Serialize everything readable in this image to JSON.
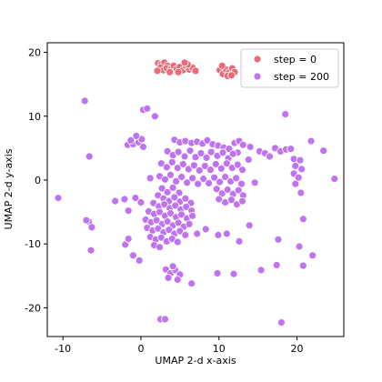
{
  "chart_data": {
    "type": "scatter",
    "title": "",
    "xlabel": "UMAP 2-d x-axis",
    "ylabel": "UMAP 2-d y-axis",
    "xlim": [
      -12,
      26
    ],
    "ylim": [
      -24.5,
      21.5
    ],
    "xticks": [
      -10,
      0,
      10,
      20
    ],
    "yticks": [
      -20,
      -10,
      0,
      10,
      20
    ],
    "grid": false,
    "legend_position": "top-right",
    "series": [
      {
        "name": "step = 0",
        "color": "#ea6a78",
        "points": [
          [
            2.2,
            18.3
          ],
          [
            2.6,
            18.1
          ],
          [
            3.0,
            18.4
          ],
          [
            3.4,
            17.9
          ],
          [
            2.5,
            17.6
          ],
          [
            2.9,
            17.2
          ],
          [
            3.3,
            17.5
          ],
          [
            3.8,
            17.3
          ],
          [
            4.2,
            17.9
          ],
          [
            4.6,
            17.4
          ],
          [
            5.0,
            17.7
          ],
          [
            5.4,
            17.2
          ],
          [
            5.8,
            17.8
          ],
          [
            6.2,
            17.3
          ],
          [
            6.6,
            17.6
          ],
          [
            7.0,
            17.1
          ],
          [
            2.1,
            17.1
          ],
          [
            3.7,
            16.9
          ],
          [
            4.8,
            16.9
          ],
          [
            6.0,
            18.1
          ],
          [
            5.6,
            18.4
          ],
          [
            10.1,
            17.2
          ],
          [
            10.5,
            16.6
          ],
          [
            10.9,
            17.3
          ],
          [
            11.3,
            16.9
          ],
          [
            11.7,
            17.5
          ],
          [
            10.4,
            17.9
          ],
          [
            11.1,
            16.3
          ],
          [
            12.0,
            16.9
          ],
          [
            11.6,
            16.4
          ]
        ]
      },
      {
        "name": "step = 200",
        "color": "#c073f0",
        "points": [
          [
            -7.2,
            12.4
          ],
          [
            -10.6,
            -2.8
          ],
          [
            -6.6,
            3.7
          ],
          [
            -6.7,
            -6.5
          ],
          [
            -6.3,
            -7.4
          ],
          [
            -6.4,
            -11.0
          ],
          [
            -7.0,
            -6.3
          ],
          [
            0.3,
            11.0
          ],
          [
            0.8,
            11.2
          ],
          [
            1.8,
            10.0
          ],
          [
            18.5,
            10.3
          ],
          [
            -1.7,
            5.5
          ],
          [
            -1.0,
            5.6
          ],
          [
            -0.3,
            5.9
          ],
          [
            0.1,
            6.4
          ],
          [
            -0.6,
            6.9
          ],
          [
            0.3,
            5.2
          ],
          [
            -1.3,
            6.2
          ],
          [
            1.2,
            0.3
          ],
          [
            -3.3,
            -3.3
          ],
          [
            -2.1,
            -3.0
          ],
          [
            -1.6,
            -4.8
          ],
          [
            -0.7,
            -2.8
          ],
          [
            0.0,
            -3.5
          ],
          [
            -2.0,
            -10.1
          ],
          [
            -1.6,
            -9.2
          ],
          [
            -1.0,
            -11.8
          ],
          [
            -0.2,
            -12.6
          ],
          [
            4.3,
            6.3
          ],
          [
            5.0,
            5.9
          ],
          [
            5.7,
            6.1
          ],
          [
            6.5,
            5.8
          ],
          [
            7.2,
            6.0
          ],
          [
            7.9,
            5.7
          ],
          [
            8.5,
            6.2
          ],
          [
            9.2,
            5.6
          ],
          [
            9.9,
            5.4
          ],
          [
            10.6,
            5.1
          ],
          [
            11.3,
            4.9
          ],
          [
            12.0,
            5.8
          ],
          [
            12.6,
            6.1
          ],
          [
            13.1,
            5.5
          ],
          [
            12.4,
            4.3
          ],
          [
            3.4,
            4.5
          ],
          [
            4.1,
            3.9
          ],
          [
            4.8,
            4.4
          ],
          [
            5.6,
            3.7
          ],
          [
            6.3,
            4.6
          ],
          [
            7.0,
            3.6
          ],
          [
            7.7,
            4.2
          ],
          [
            8.4,
            3.5
          ],
          [
            9.0,
            4.4
          ],
          [
            9.8,
            3.8
          ],
          [
            10.5,
            4.3
          ],
          [
            11.2,
            3.4
          ],
          [
            11.8,
            4.1
          ],
          [
            2.6,
            2.6
          ],
          [
            3.3,
            2.0
          ],
          [
            4.0,
            2.8
          ],
          [
            4.7,
            1.9
          ],
          [
            5.4,
            2.5
          ],
          [
            6.1,
            1.7
          ],
          [
            6.8,
            2.3
          ],
          [
            7.5,
            1.5
          ],
          [
            8.2,
            2.2
          ],
          [
            8.9,
            1.6
          ],
          [
            9.6,
            2.5
          ],
          [
            10.3,
            1.8
          ],
          [
            11.0,
            2.6
          ],
          [
            11.7,
            1.9
          ],
          [
            12.4,
            2.4
          ],
          [
            13.0,
            1.6
          ],
          [
            2.4,
            0.6
          ],
          [
            3.1,
            0.1
          ],
          [
            3.8,
            0.8
          ],
          [
            4.5,
            -0.2
          ],
          [
            5.2,
            0.5
          ],
          [
            5.9,
            -0.4
          ],
          [
            6.6,
            0.3
          ],
          [
            7.3,
            -0.6
          ],
          [
            8.0,
            0.2
          ],
          [
            8.7,
            -0.5
          ],
          [
            9.4,
            0.4
          ],
          [
            10.1,
            -0.3
          ],
          [
            10.8,
            0.5
          ],
          [
            11.5,
            -0.2
          ],
          [
            12.2,
            0.3
          ],
          [
            12.9,
            -0.6
          ],
          [
            2.7,
            -1.3
          ],
          [
            3.4,
            -1.9
          ],
          [
            4.1,
            -1.2
          ],
          [
            4.9,
            -2.0
          ],
          [
            9.7,
            -1.4
          ],
          [
            10.4,
            -2.1
          ],
          [
            11.1,
            -1.5
          ],
          [
            11.8,
            -2.2
          ],
          [
            12.5,
            -1.6
          ],
          [
            13.1,
            -2.4
          ],
          [
            10.0,
            -3.0
          ],
          [
            10.8,
            -3.5
          ],
          [
            11.6,
            -3.1
          ],
          [
            12.3,
            -3.8
          ],
          [
            13.0,
            -3.3
          ],
          [
            14.0,
            5.2
          ],
          [
            13.8,
            3.2
          ],
          [
            14.6,
            -0.4
          ],
          [
            2.2,
            -2.4
          ],
          [
            2.9,
            -2.9
          ],
          [
            3.6,
            -3.3
          ],
          [
            4.3,
            -2.7
          ],
          [
            5.0,
            -3.4
          ],
          [
            5.7,
            -2.9
          ],
          [
            6.4,
            -3.6
          ],
          [
            1.6,
            -3.6
          ],
          [
            2.3,
            -4.1
          ],
          [
            3.0,
            -3.8
          ],
          [
            3.7,
            -4.4
          ],
          [
            4.4,
            -4.0
          ],
          [
            5.1,
            -4.6
          ],
          [
            5.8,
            -4.2
          ],
          [
            6.5,
            -4.8
          ],
          [
            1.0,
            -4.9
          ],
          [
            1.7,
            -5.3
          ],
          [
            2.4,
            -5.0
          ],
          [
            3.1,
            -5.6
          ],
          [
            3.8,
            -5.2
          ],
          [
            4.5,
            -5.8
          ],
          [
            5.2,
            -5.4
          ],
          [
            5.9,
            -6.0
          ],
          [
            6.6,
            -5.6
          ],
          [
            0.6,
            -6.2
          ],
          [
            1.3,
            -6.6
          ],
          [
            2.0,
            -6.3
          ],
          [
            2.7,
            -6.9
          ],
          [
            3.4,
            -6.5
          ],
          [
            4.1,
            -7.1
          ],
          [
            4.8,
            -6.7
          ],
          [
            5.5,
            -7.3
          ],
          [
            6.2,
            -6.9
          ],
          [
            0.8,
            -7.5
          ],
          [
            1.5,
            -7.9
          ],
          [
            2.2,
            -7.6
          ],
          [
            2.9,
            -8.2
          ],
          [
            3.6,
            -7.8
          ],
          [
            4.3,
            -8.4
          ],
          [
            5.0,
            -8.0
          ],
          [
            5.7,
            -8.6
          ],
          [
            1.2,
            -8.9
          ],
          [
            1.9,
            -9.3
          ],
          [
            2.6,
            -9.0
          ],
          [
            3.3,
            -9.6
          ],
          [
            4.0,
            -9.2
          ],
          [
            4.7,
            -9.7
          ],
          [
            1.7,
            -10.2
          ],
          [
            2.4,
            -10.5
          ],
          [
            7.2,
            -8.4
          ],
          [
            8.3,
            -7.7
          ],
          [
            9.9,
            -8.6
          ],
          [
            11.0,
            -8.4
          ],
          [
            13.9,
            -7.1
          ],
          [
            15.2,
            4.5
          ],
          [
            15.9,
            4.2
          ],
          [
            16.5,
            3.7
          ],
          [
            17.2,
            5.0
          ],
          [
            17.9,
            4.5
          ],
          [
            18.6,
            4.8
          ],
          [
            19.2,
            4.9
          ],
          [
            19.6,
            3.3
          ],
          [
            20.4,
            3.1
          ],
          [
            19.8,
            2.2
          ],
          [
            20.6,
            1.7
          ],
          [
            19.6,
            1.0
          ],
          [
            20.2,
            0.4
          ],
          [
            19.8,
            -0.6
          ],
          [
            20.5,
            -2.0
          ],
          [
            21.8,
            6.1
          ],
          [
            23.4,
            4.6
          ],
          [
            24.8,
            0.2
          ],
          [
            20.8,
            -6.1
          ],
          [
            20.3,
            -10.4
          ],
          [
            20.8,
            -13.4
          ],
          [
            22.0,
            -11.8
          ],
          [
            17.6,
            -9.3
          ],
          [
            17.4,
            -13.3
          ],
          [
            18.0,
            -22.3
          ],
          [
            15.4,
            -14.1
          ],
          [
            12.6,
            -9.6
          ],
          [
            9.8,
            -14.6
          ],
          [
            11.9,
            -14.7
          ],
          [
            6.5,
            -16.2
          ],
          [
            3.2,
            -14.0
          ],
          [
            3.8,
            -14.6
          ],
          [
            4.4,
            -14.1
          ],
          [
            5.0,
            -14.8
          ],
          [
            3.5,
            -15.3
          ],
          [
            4.7,
            -15.6
          ],
          [
            4.1,
            -13.5
          ],
          [
            2.5,
            -21.8
          ],
          [
            3.1,
            -21.8
          ]
        ]
      }
    ]
  }
}
